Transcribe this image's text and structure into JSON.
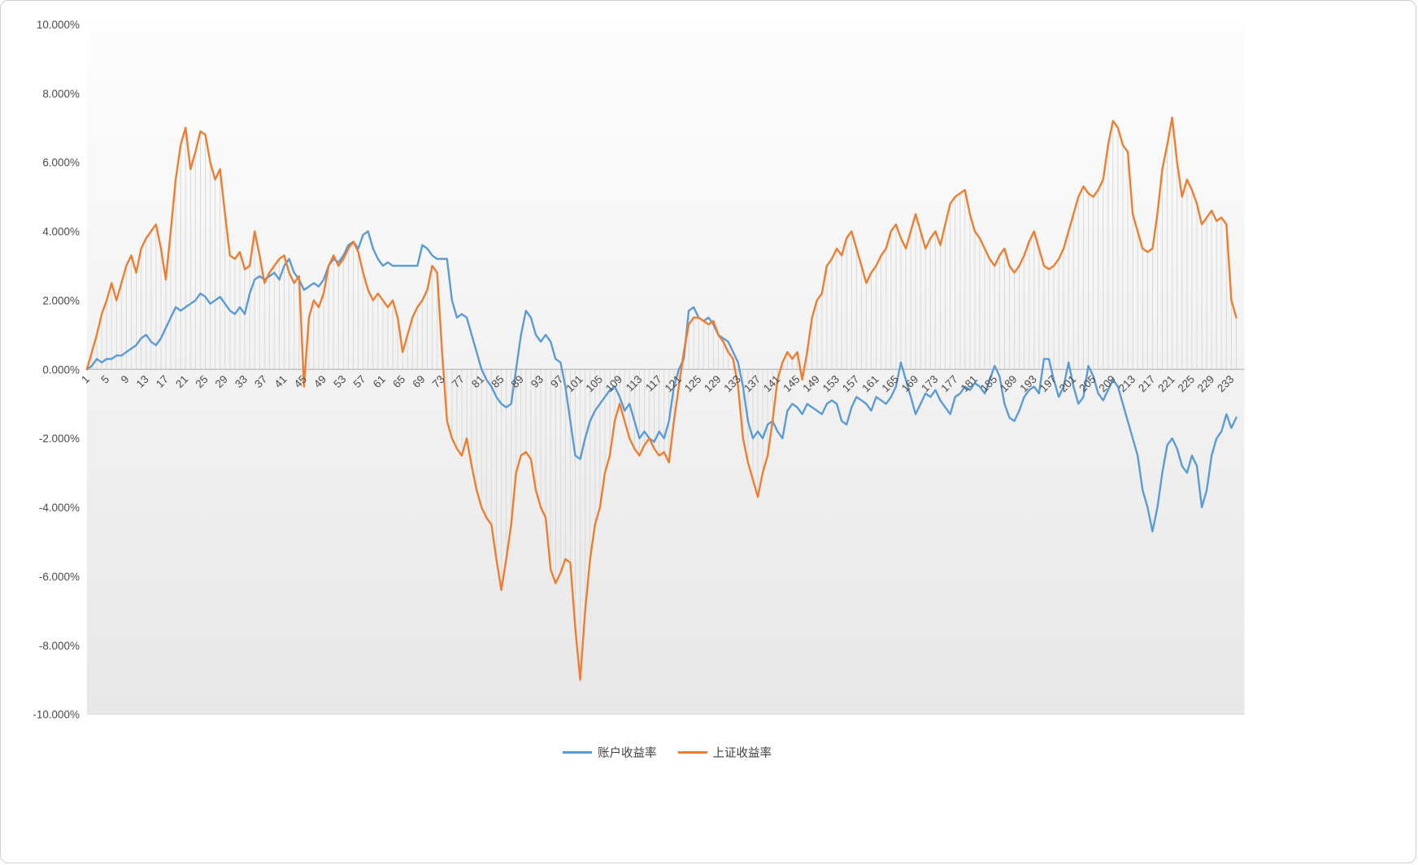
{
  "chart_data": {
    "type": "line",
    "title": "",
    "xlabel": "",
    "ylabel": "",
    "ylim": [
      -10,
      10
    ],
    "y_tick_step": 2,
    "y_tick_format": "0.000%",
    "x_start": 1,
    "x_count": 234,
    "x_tick_step": 4,
    "x_tick_rotation_deg": -45,
    "legend_position": "bottom",
    "grid": "vertical drop lines at every category from zero axis to benchmark series",
    "colors": {
      "dropline": "#d9d9d9",
      "axis_line": "#d9d9d9",
      "zero_line": "#ababab",
      "tick_text": "#4a4a4a",
      "plot_bg_top": "#fdfdfd",
      "plot_bg_bottom": "#e7e7e7"
    },
    "y_ticks": [
      {
        "label": "10.000%",
        "value": 10
      },
      {
        "label": "8.000%",
        "value": 8
      },
      {
        "label": "6.000%",
        "value": 6
      },
      {
        "label": "4.000%",
        "value": 4
      },
      {
        "label": "2.000%",
        "value": 2
      },
      {
        "label": "0.000%",
        "value": 0
      },
      {
        "label": "-2.000%",
        "value": -2
      },
      {
        "label": "-4.000%",
        "value": -4
      },
      {
        "label": "-6.000%",
        "value": -6
      },
      {
        "label": "-8.000%",
        "value": -8
      },
      {
        "label": "-10.000%",
        "value": -10
      }
    ],
    "x_ticks": [
      1,
      5,
      9,
      13,
      17,
      21,
      25,
      29,
      33,
      37,
      41,
      45,
      49,
      53,
      57,
      61,
      65,
      69,
      73,
      77,
      81,
      85,
      89,
      93,
      97,
      101,
      105,
      109,
      113,
      117,
      121,
      125,
      129,
      133,
      137,
      141,
      145,
      149,
      153,
      157,
      161,
      165,
      169,
      173,
      177,
      181,
      185,
      189,
      193,
      197,
      201,
      205,
      209,
      213,
      217,
      221,
      225,
      229,
      233
    ],
    "series": [
      {
        "name": "账户收益率",
        "color": "#5B9BD5",
        "values": [
          0.0,
          0.1,
          0.3,
          0.2,
          0.3,
          0.3,
          0.4,
          0.4,
          0.5,
          0.6,
          0.7,
          0.9,
          1.0,
          0.8,
          0.7,
          0.9,
          1.2,
          1.5,
          1.8,
          1.7,
          1.8,
          1.9,
          2.0,
          2.2,
          2.1,
          1.9,
          2.0,
          2.1,
          1.9,
          1.7,
          1.6,
          1.8,
          1.6,
          2.2,
          2.6,
          2.7,
          2.6,
          2.7,
          2.8,
          2.6,
          3.0,
          3.2,
          2.8,
          2.6,
          2.3,
          2.4,
          2.5,
          2.4,
          2.6,
          3.0,
          3.2,
          3.1,
          3.3,
          3.6,
          3.7,
          3.5,
          3.9,
          4.0,
          3.5,
          3.2,
          3.0,
          3.1,
          3.0,
          3.0,
          3.0,
          3.0,
          3.0,
          3.0,
          3.6,
          3.5,
          3.3,
          3.2,
          3.2,
          3.2,
          2.0,
          1.5,
          1.6,
          1.5,
          1.0,
          0.5,
          0.0,
          -0.3,
          -0.5,
          -0.8,
          -1.0,
          -1.1,
          -1.0,
          0.0,
          1.0,
          1.7,
          1.5,
          1.0,
          0.8,
          1.0,
          0.8,
          0.3,
          0.2,
          -0.5,
          -1.5,
          -2.5,
          -2.6,
          -2.0,
          -1.5,
          -1.2,
          -1.0,
          -0.8,
          -0.6,
          -0.5,
          -0.8,
          -1.2,
          -1.0,
          -1.5,
          -2.0,
          -1.8,
          -2.0,
          -2.1,
          -1.8,
          -2.0,
          -1.5,
          -0.5,
          0.0,
          0.3,
          1.7,
          1.8,
          1.5,
          1.4,
          1.5,
          1.3,
          1.0,
          0.9,
          0.8,
          0.5,
          0.2,
          -0.5,
          -1.5,
          -2.0,
          -1.8,
          -2.0,
          -1.6,
          -1.5,
          -1.8,
          -2.0,
          -1.2,
          -1.0,
          -1.1,
          -1.3,
          -1.0,
          -1.1,
          -1.2,
          -1.3,
          -1.0,
          -0.9,
          -1.0,
          -1.5,
          -1.6,
          -1.1,
          -0.8,
          -0.9,
          -1.0,
          -1.2,
          -0.8,
          -0.9,
          -1.0,
          -0.8,
          -0.5,
          0.2,
          -0.3,
          -0.8,
          -1.3,
          -1.0,
          -0.7,
          -0.8,
          -0.6,
          -0.9,
          -1.1,
          -1.3,
          -0.8,
          -0.7,
          -0.5,
          -0.6,
          -0.4,
          -0.5,
          -0.7,
          -0.3,
          0.1,
          -0.2,
          -1.0,
          -1.4,
          -1.5,
          -1.2,
          -0.8,
          -0.6,
          -0.5,
          -0.7,
          0.3,
          0.3,
          -0.3,
          -0.8,
          -0.5,
          0.2,
          -0.5,
          -1.0,
          -0.8,
          0.1,
          -0.2,
          -0.7,
          -0.9,
          -0.6,
          -0.3,
          -0.5,
          -1.0,
          -1.5,
          -2.0,
          -2.5,
          -3.5,
          -4.0,
          -4.7,
          -4.0,
          -3.0,
          -2.2,
          -2.0,
          -2.3,
          -2.8,
          -3.0,
          -2.5,
          -2.8,
          -4.0,
          -3.5,
          -2.5,
          -2.0,
          -1.8,
          -1.3,
          -1.7,
          -1.4
        ]
      },
      {
        "name": "上证收益率",
        "color": "#ED7D31",
        "values": [
          0.0,
          0.5,
          1.0,
          1.6,
          2.0,
          2.5,
          2.0,
          2.5,
          3.0,
          3.3,
          2.8,
          3.5,
          3.8,
          4.0,
          4.2,
          3.5,
          2.6,
          4.0,
          5.5,
          6.5,
          7.0,
          5.8,
          6.3,
          6.9,
          6.8,
          6.0,
          5.5,
          5.8,
          4.5,
          3.3,
          3.2,
          3.4,
          2.9,
          3.0,
          4.0,
          3.3,
          2.5,
          2.8,
          3.0,
          3.2,
          3.3,
          2.8,
          2.5,
          2.7,
          -0.5,
          1.5,
          2.0,
          1.8,
          2.2,
          3.0,
          3.3,
          3.0,
          3.2,
          3.5,
          3.7,
          3.4,
          2.8,
          2.3,
          2.0,
          2.2,
          2.0,
          1.8,
          2.0,
          1.5,
          0.5,
          1.0,
          1.5,
          1.8,
          2.0,
          2.3,
          3.0,
          2.8,
          0.5,
          -1.5,
          -2.0,
          -2.3,
          -2.5,
          -2.0,
          -2.8,
          -3.5,
          -4.0,
          -4.3,
          -4.5,
          -5.5,
          -6.4,
          -5.5,
          -4.5,
          -3.0,
          -2.5,
          -2.4,
          -2.6,
          -3.5,
          -4.0,
          -4.3,
          -5.8,
          -6.2,
          -5.9,
          -5.5,
          -5.6,
          -7.5,
          -9.0,
          -7.0,
          -5.5,
          -4.5,
          -4.0,
          -3.0,
          -2.5,
          -1.5,
          -1.0,
          -1.5,
          -2.0,
          -2.3,
          -2.5,
          -2.2,
          -2.0,
          -2.3,
          -2.5,
          -2.4,
          -2.7,
          -1.5,
          -0.5,
          0.5,
          1.3,
          1.5,
          1.5,
          1.4,
          1.3,
          1.4,
          1.0,
          0.8,
          0.5,
          0.3,
          -0.5,
          -2.0,
          -2.7,
          -3.2,
          -3.7,
          -3.0,
          -2.5,
          -1.5,
          -0.3,
          0.2,
          0.5,
          0.3,
          0.5,
          -0.3,
          0.5,
          1.5,
          2.0,
          2.2,
          3.0,
          3.2,
          3.5,
          3.3,
          3.8,
          4.0,
          3.5,
          3.0,
          2.5,
          2.8,
          3.0,
          3.3,
          3.5,
          4.0,
          4.2,
          3.8,
          3.5,
          4.0,
          4.5,
          4.0,
          3.5,
          3.8,
          4.0,
          3.6,
          4.2,
          4.8,
          5.0,
          5.1,
          5.2,
          4.5,
          4.0,
          3.8,
          3.5,
          3.2,
          3.0,
          3.3,
          3.5,
          3.0,
          2.8,
          3.0,
          3.3,
          3.7,
          4.0,
          3.5,
          3.0,
          2.9,
          3.0,
          3.2,
          3.5,
          4.0,
          4.5,
          5.0,
          5.3,
          5.1,
          5.0,
          5.2,
          5.5,
          6.5,
          7.2,
          7.0,
          6.5,
          6.3,
          4.5,
          4.0,
          3.5,
          3.4,
          3.5,
          4.5,
          5.8,
          6.5,
          7.3,
          6.0,
          5.0,
          5.5,
          5.2,
          4.8,
          4.2,
          4.4,
          4.6,
          4.3,
          4.4,
          4.2,
          2.0,
          1.5
        ]
      }
    ]
  }
}
